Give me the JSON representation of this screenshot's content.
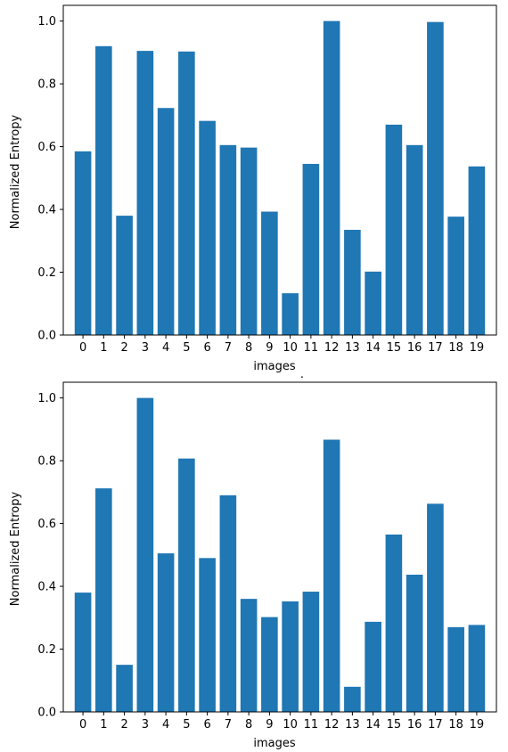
{
  "separator_text": ".",
  "colors": {
    "bar": "#1f77b4",
    "axis": "#000000",
    "background": "#ffffff"
  },
  "chart_data": [
    {
      "type": "bar",
      "categories": [
        "0",
        "1",
        "2",
        "3",
        "4",
        "5",
        "6",
        "7",
        "8",
        "9",
        "10",
        "11",
        "12",
        "13",
        "14",
        "15",
        "16",
        "17",
        "18",
        "19"
      ],
      "values": [
        0.585,
        0.92,
        0.38,
        0.905,
        0.723,
        0.903,
        0.682,
        0.605,
        0.597,
        0.393,
        0.133,
        0.545,
        1.0,
        0.335,
        0.202,
        0.67,
        0.605,
        0.997,
        0.377,
        0.537
      ],
      "xlabel": "images",
      "ylabel": "Normalized Entropy",
      "yticks": [
        "0.0",
        "0.2",
        "0.4",
        "0.6",
        "0.8",
        "1.0"
      ],
      "ylim": [
        0,
        1.05
      ],
      "grid": false
    },
    {
      "type": "bar",
      "categories": [
        "0",
        "1",
        "2",
        "3",
        "4",
        "5",
        "6",
        "7",
        "8",
        "9",
        "10",
        "11",
        "12",
        "13",
        "14",
        "15",
        "16",
        "17",
        "18",
        "19"
      ],
      "values": [
        0.38,
        0.712,
        0.15,
        1.0,
        0.505,
        0.807,
        0.49,
        0.69,
        0.36,
        0.302,
        0.352,
        0.383,
        0.867,
        0.08,
        0.287,
        0.565,
        0.437,
        0.663,
        0.27,
        0.277
      ],
      "xlabel": "images",
      "ylabel": "Normalized Entropy",
      "yticks": [
        "0.0",
        "0.2",
        "0.4",
        "0.6",
        "0.8",
        "1.0"
      ],
      "ylim": [
        0,
        1.05
      ],
      "grid": false
    }
  ]
}
